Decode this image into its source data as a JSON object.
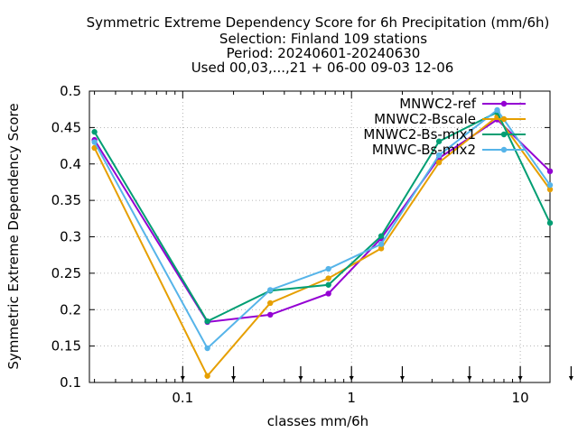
{
  "chart_data": {
    "type": "line",
    "title_lines": [
      "Symmetric Extreme Dependency Score  for 6h Precipitation (mm/6h)",
      "Selection: Finland    109 stations",
      "Period: 20240601-20240630",
      "Used 00,03,...,21 + 06-00 09-03 12-06"
    ],
    "xlabel": "classes mm/6h",
    "ylabel": "Symmetric Extreme Dependency Score",
    "x_scale": "log",
    "xlim": [
      0.028,
      15
    ],
    "ylim": [
      0.1,
      0.5
    ],
    "x_ticks": [
      0.1,
      1,
      10
    ],
    "x_tick_labels": [
      "0.1",
      "1",
      "10"
    ],
    "y_ticks": [
      0.1,
      0.15,
      0.2,
      0.25,
      0.3,
      0.35,
      0.4,
      0.45,
      0.5
    ],
    "y_tick_labels": [
      "0.1",
      "0.15",
      "0.2",
      "0.25",
      "0.3",
      "0.35",
      "0.4",
      "0.45",
      "0.5"
    ],
    "grid": true,
    "legend_position": "top-right",
    "class_markers_x": [
      0.1,
      0.2,
      0.5,
      1,
      2,
      5,
      10,
      20
    ],
    "x": [
      0.03,
      0.14,
      0.33,
      0.73,
      1.5,
      3.3,
      7.3,
      15
    ],
    "series": [
      {
        "name": "MNWC2-ref",
        "color": "#9400d3",
        "values": [
          0.433,
          0.183,
          0.193,
          0.222,
          0.298,
          0.408,
          0.461,
          0.39
        ]
      },
      {
        "name": "MNWC2-Bscale",
        "color": "#e69f00",
        "values": [
          0.422,
          0.109,
          0.209,
          0.243,
          0.284,
          0.402,
          0.465,
          0.365
        ]
      },
      {
        "name": "MNWC2-Bs-mix1",
        "color": "#009e73",
        "values": [
          0.444,
          0.184,
          0.226,
          0.234,
          0.301,
          0.431,
          0.471,
          0.319
        ]
      },
      {
        "name": "MNWC-Bs-mix2",
        "color": "#56b4e9",
        "values": [
          0.43,
          0.147,
          0.227,
          0.256,
          0.29,
          0.412,
          0.474,
          0.371
        ]
      }
    ]
  }
}
